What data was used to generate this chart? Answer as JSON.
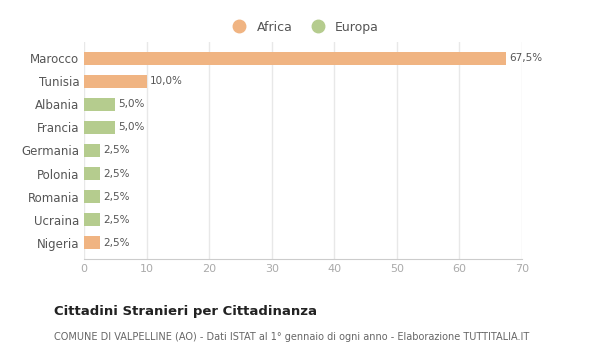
{
  "categories": [
    "Marocco",
    "Tunisia",
    "Albania",
    "Francia",
    "Germania",
    "Polonia",
    "Romania",
    "Ucraina",
    "Nigeria"
  ],
  "values": [
    67.5,
    10.0,
    5.0,
    5.0,
    2.5,
    2.5,
    2.5,
    2.5,
    2.5
  ],
  "colors": [
    "#f0b482",
    "#f0b482",
    "#b5cc8e",
    "#b5cc8e",
    "#b5cc8e",
    "#b5cc8e",
    "#b5cc8e",
    "#b5cc8e",
    "#f0b482"
  ],
  "labels": [
    "67,5%",
    "10,0%",
    "5,0%",
    "5,0%",
    "2,5%",
    "2,5%",
    "2,5%",
    "2,5%",
    "2,5%"
  ],
  "legend_africa_color": "#f0b482",
  "legend_europa_color": "#b5cc8e",
  "xlim": [
    0,
    70
  ],
  "xticks": [
    0,
    10,
    20,
    30,
    40,
    50,
    60,
    70
  ],
  "title": "Cittadini Stranieri per Cittadinanza",
  "subtitle": "COMUNE DI VALPELLINE (AO) - Dati ISTAT al 1° gennaio di ogni anno - Elaborazione TUTTITALIA.IT",
  "background_color": "#ffffff",
  "grid_color": "#e8e8e8",
  "bar_height": 0.55
}
